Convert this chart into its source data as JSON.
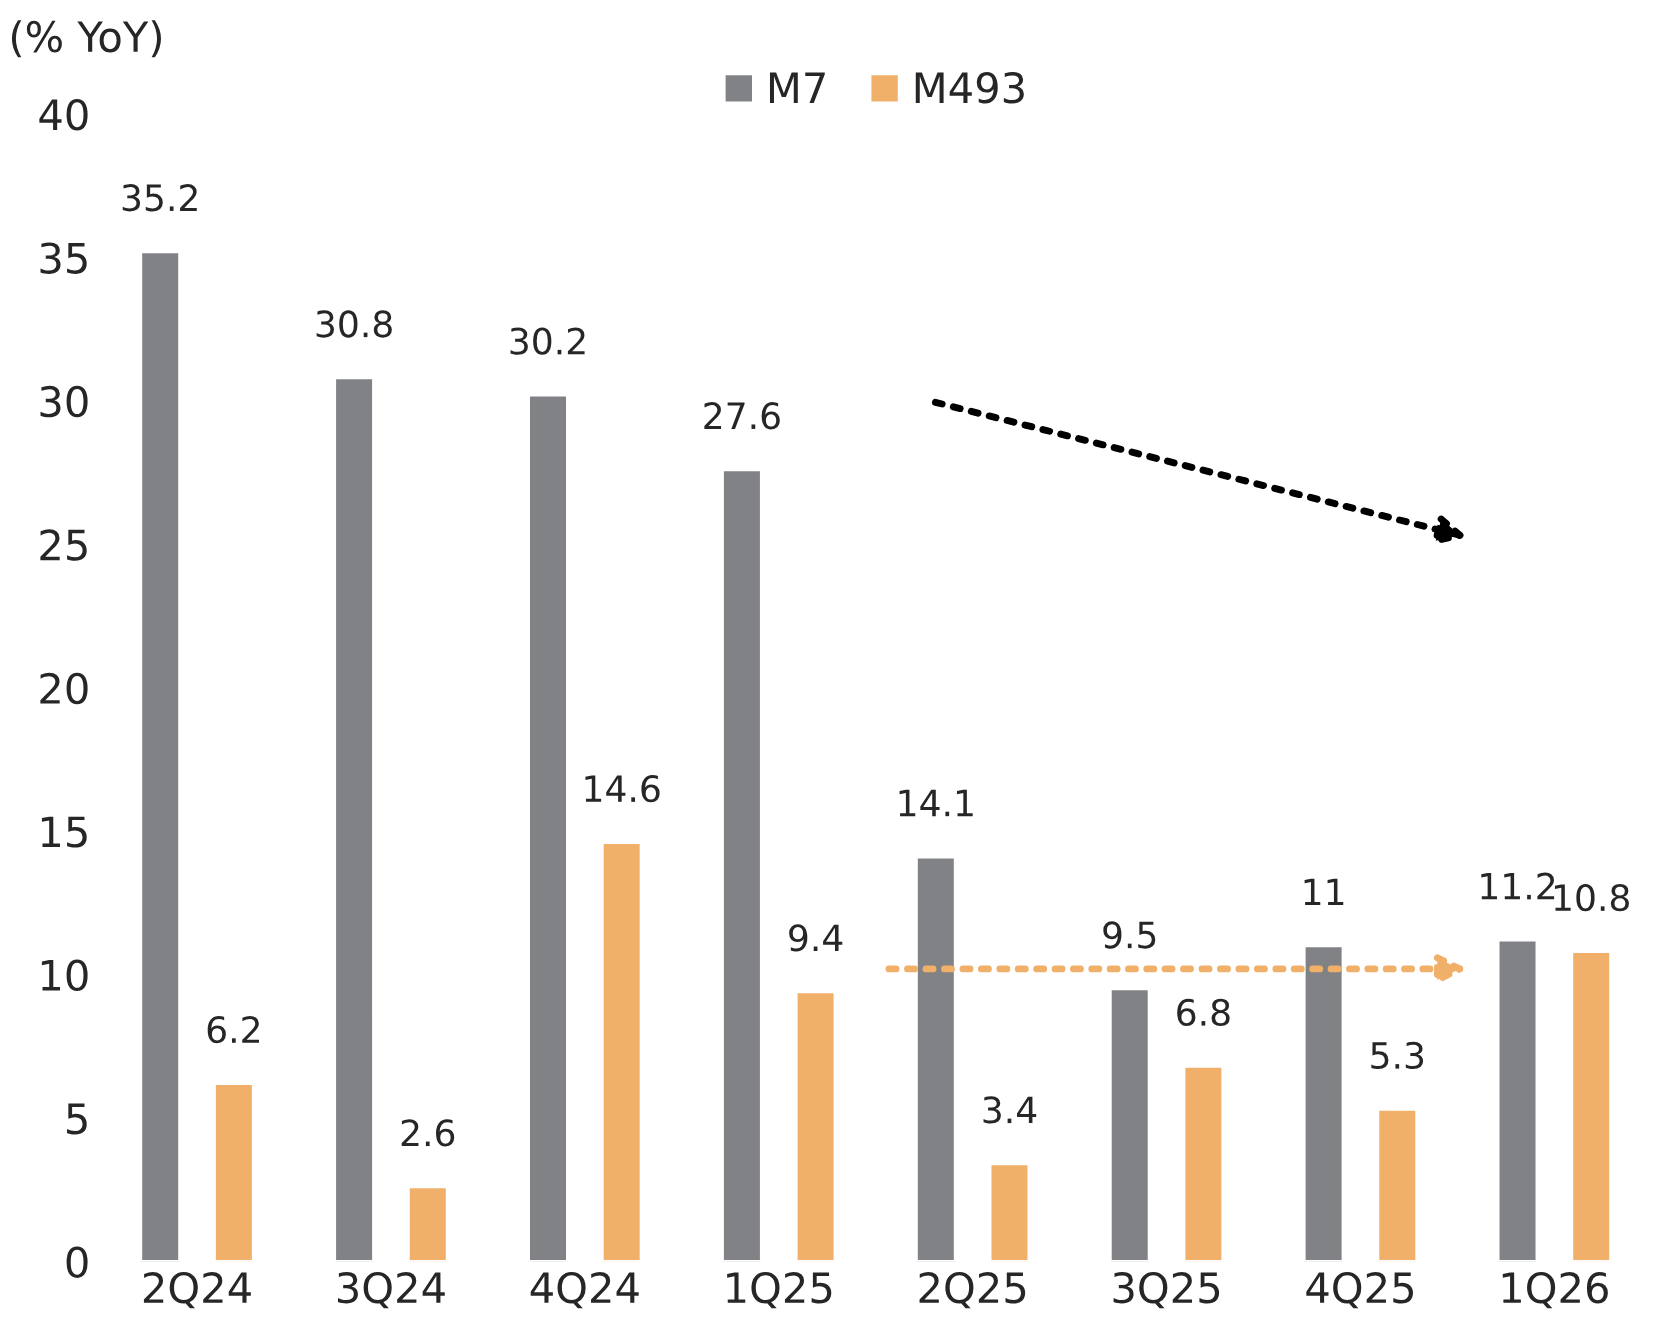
{
  "chart_data": {
    "type": "bar",
    "ylabel": "(% YoY)",
    "categories": [
      "2Q24",
      "3Q24",
      "4Q24",
      "1Q25",
      "2Q25",
      "3Q25",
      "4Q25",
      "1Q26"
    ],
    "series": [
      {
        "name": "M7",
        "color": "#808285",
        "values": [
          35.2,
          30.8,
          30.2,
          27.6,
          14.1,
          9.5,
          11,
          11.2
        ]
      },
      {
        "name": "M493",
        "color": "#f0b06a",
        "values": [
          6.2,
          2.6,
          14.6,
          9.4,
          3.4,
          6.8,
          5.3,
          10.8
        ]
      }
    ],
    "ylim": [
      0,
      40
    ],
    "yticks": [
      0,
      5,
      10,
      15,
      20,
      25,
      30,
      35,
      40
    ],
    "data_labels": true,
    "grid": false,
    "legend": "top"
  }
}
